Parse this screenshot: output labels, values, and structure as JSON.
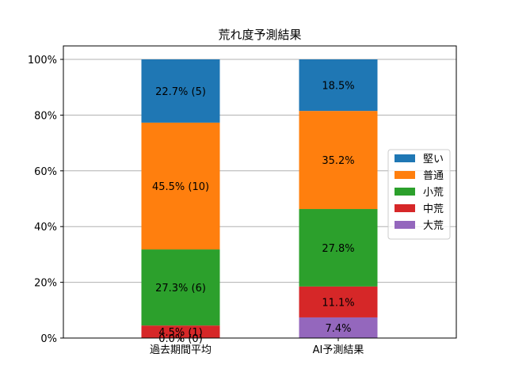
{
  "chart_data": {
    "type": "bar",
    "stacked": true,
    "title": "荒れ度予測結果",
    "xlabel": "",
    "ylabel": "",
    "categories": [
      "過去期間平均",
      "AI予測結果"
    ],
    "ylim": [
      0,
      100
    ],
    "yticks": [
      "0%",
      "20%",
      "40%",
      "60%",
      "80%",
      "100%"
    ],
    "grid": "horizontal",
    "legend_position": "right",
    "series": [
      {
        "name": "大荒",
        "color": "#9467bd",
        "values": [
          0.0,
          7.4
        ],
        "labels": [
          "0.0% (0)",
          "7.4%"
        ]
      },
      {
        "name": "中荒",
        "color": "#d62728",
        "values": [
          4.5,
          11.1
        ],
        "labels": [
          "4.5% (1)",
          "11.1%"
        ]
      },
      {
        "name": "小荒",
        "color": "#2ca02c",
        "values": [
          27.3,
          27.8
        ],
        "labels": [
          "27.3% (6)",
          "27.8%"
        ]
      },
      {
        "name": "普通",
        "color": "#ff7f0e",
        "values": [
          45.5,
          35.2
        ],
        "labels": [
          "45.5% (10)",
          "35.2%"
        ]
      },
      {
        "name": "堅い",
        "color": "#1f77b4",
        "values": [
          22.7,
          18.5
        ],
        "labels": [
          "22.7% (5)",
          "18.5%"
        ]
      }
    ],
    "legend_order": [
      "堅い",
      "普通",
      "小荒",
      "中荒",
      "大荒"
    ]
  }
}
